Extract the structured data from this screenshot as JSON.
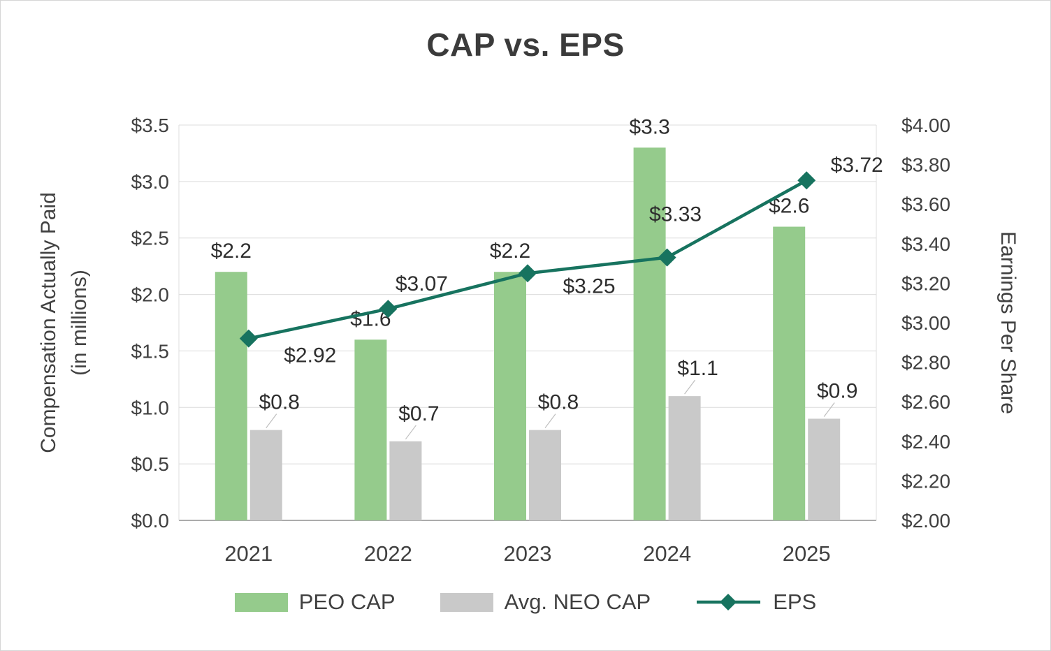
{
  "chart_data": {
    "type": "bar",
    "subtype": "combo-bar-line",
    "title": "CAP vs. EPS",
    "categories": [
      "2021",
      "2022",
      "2023",
      "2024",
      "2025"
    ],
    "series": [
      {
        "name": "PEO CAP",
        "type": "bar",
        "axis": "left",
        "color": "#95CB8C",
        "values": [
          2.2,
          1.6,
          2.2,
          3.3,
          2.6
        ],
        "labels": [
          "$2.2",
          "$1.6",
          "$2.2",
          "$3.3",
          "$2.6"
        ]
      },
      {
        "name": "Avg. NEO CAP",
        "type": "bar",
        "axis": "left",
        "color": "#C9C9C9",
        "values": [
          0.8,
          0.7,
          0.8,
          1.1,
          0.9
        ],
        "labels": [
          "$0.8",
          "$0.7",
          "$0.8",
          "$1.1",
          "$0.9"
        ]
      },
      {
        "name": "EPS",
        "type": "line",
        "axis": "right",
        "color": "#17735F",
        "marker": "diamond",
        "values": [
          2.92,
          3.07,
          3.25,
          3.33,
          3.72
        ],
        "labels": [
          "$2.92",
          "$3.07",
          "$3.25",
          "$3.33",
          "$3.72"
        ]
      }
    ],
    "left_axis": {
      "title": "Compensation Actually Paid (in millions)",
      "title_line1": "Compensation Actually Paid",
      "title_line2": "(in millions)",
      "min": 0,
      "max": 3.5,
      "step": 0.5,
      "ticks": [
        "$3.5",
        "$3.0",
        "$2.5",
        "$2.0",
        "$1.5",
        "$1.0",
        "$0.5",
        "$0.0"
      ]
    },
    "right_axis": {
      "title": "Earnings Per Share",
      "min": 2.0,
      "max": 4.0,
      "step": 0.2,
      "ticks": [
        "$4.00",
        "$3.80",
        "$3.60",
        "$3.40",
        "$3.20",
        "$3.00",
        "$2.80",
        "$2.60",
        "$2.40",
        "$2.20",
        "$2.00"
      ]
    },
    "legend": {
      "position": "bottom",
      "items": [
        "PEO CAP",
        "Avg. NEO CAP",
        "EPS"
      ]
    },
    "grid": true,
    "colors": {
      "gridline": "#DCDCDC",
      "axis_line": "#ABABAB",
      "text": "#404040"
    }
  }
}
